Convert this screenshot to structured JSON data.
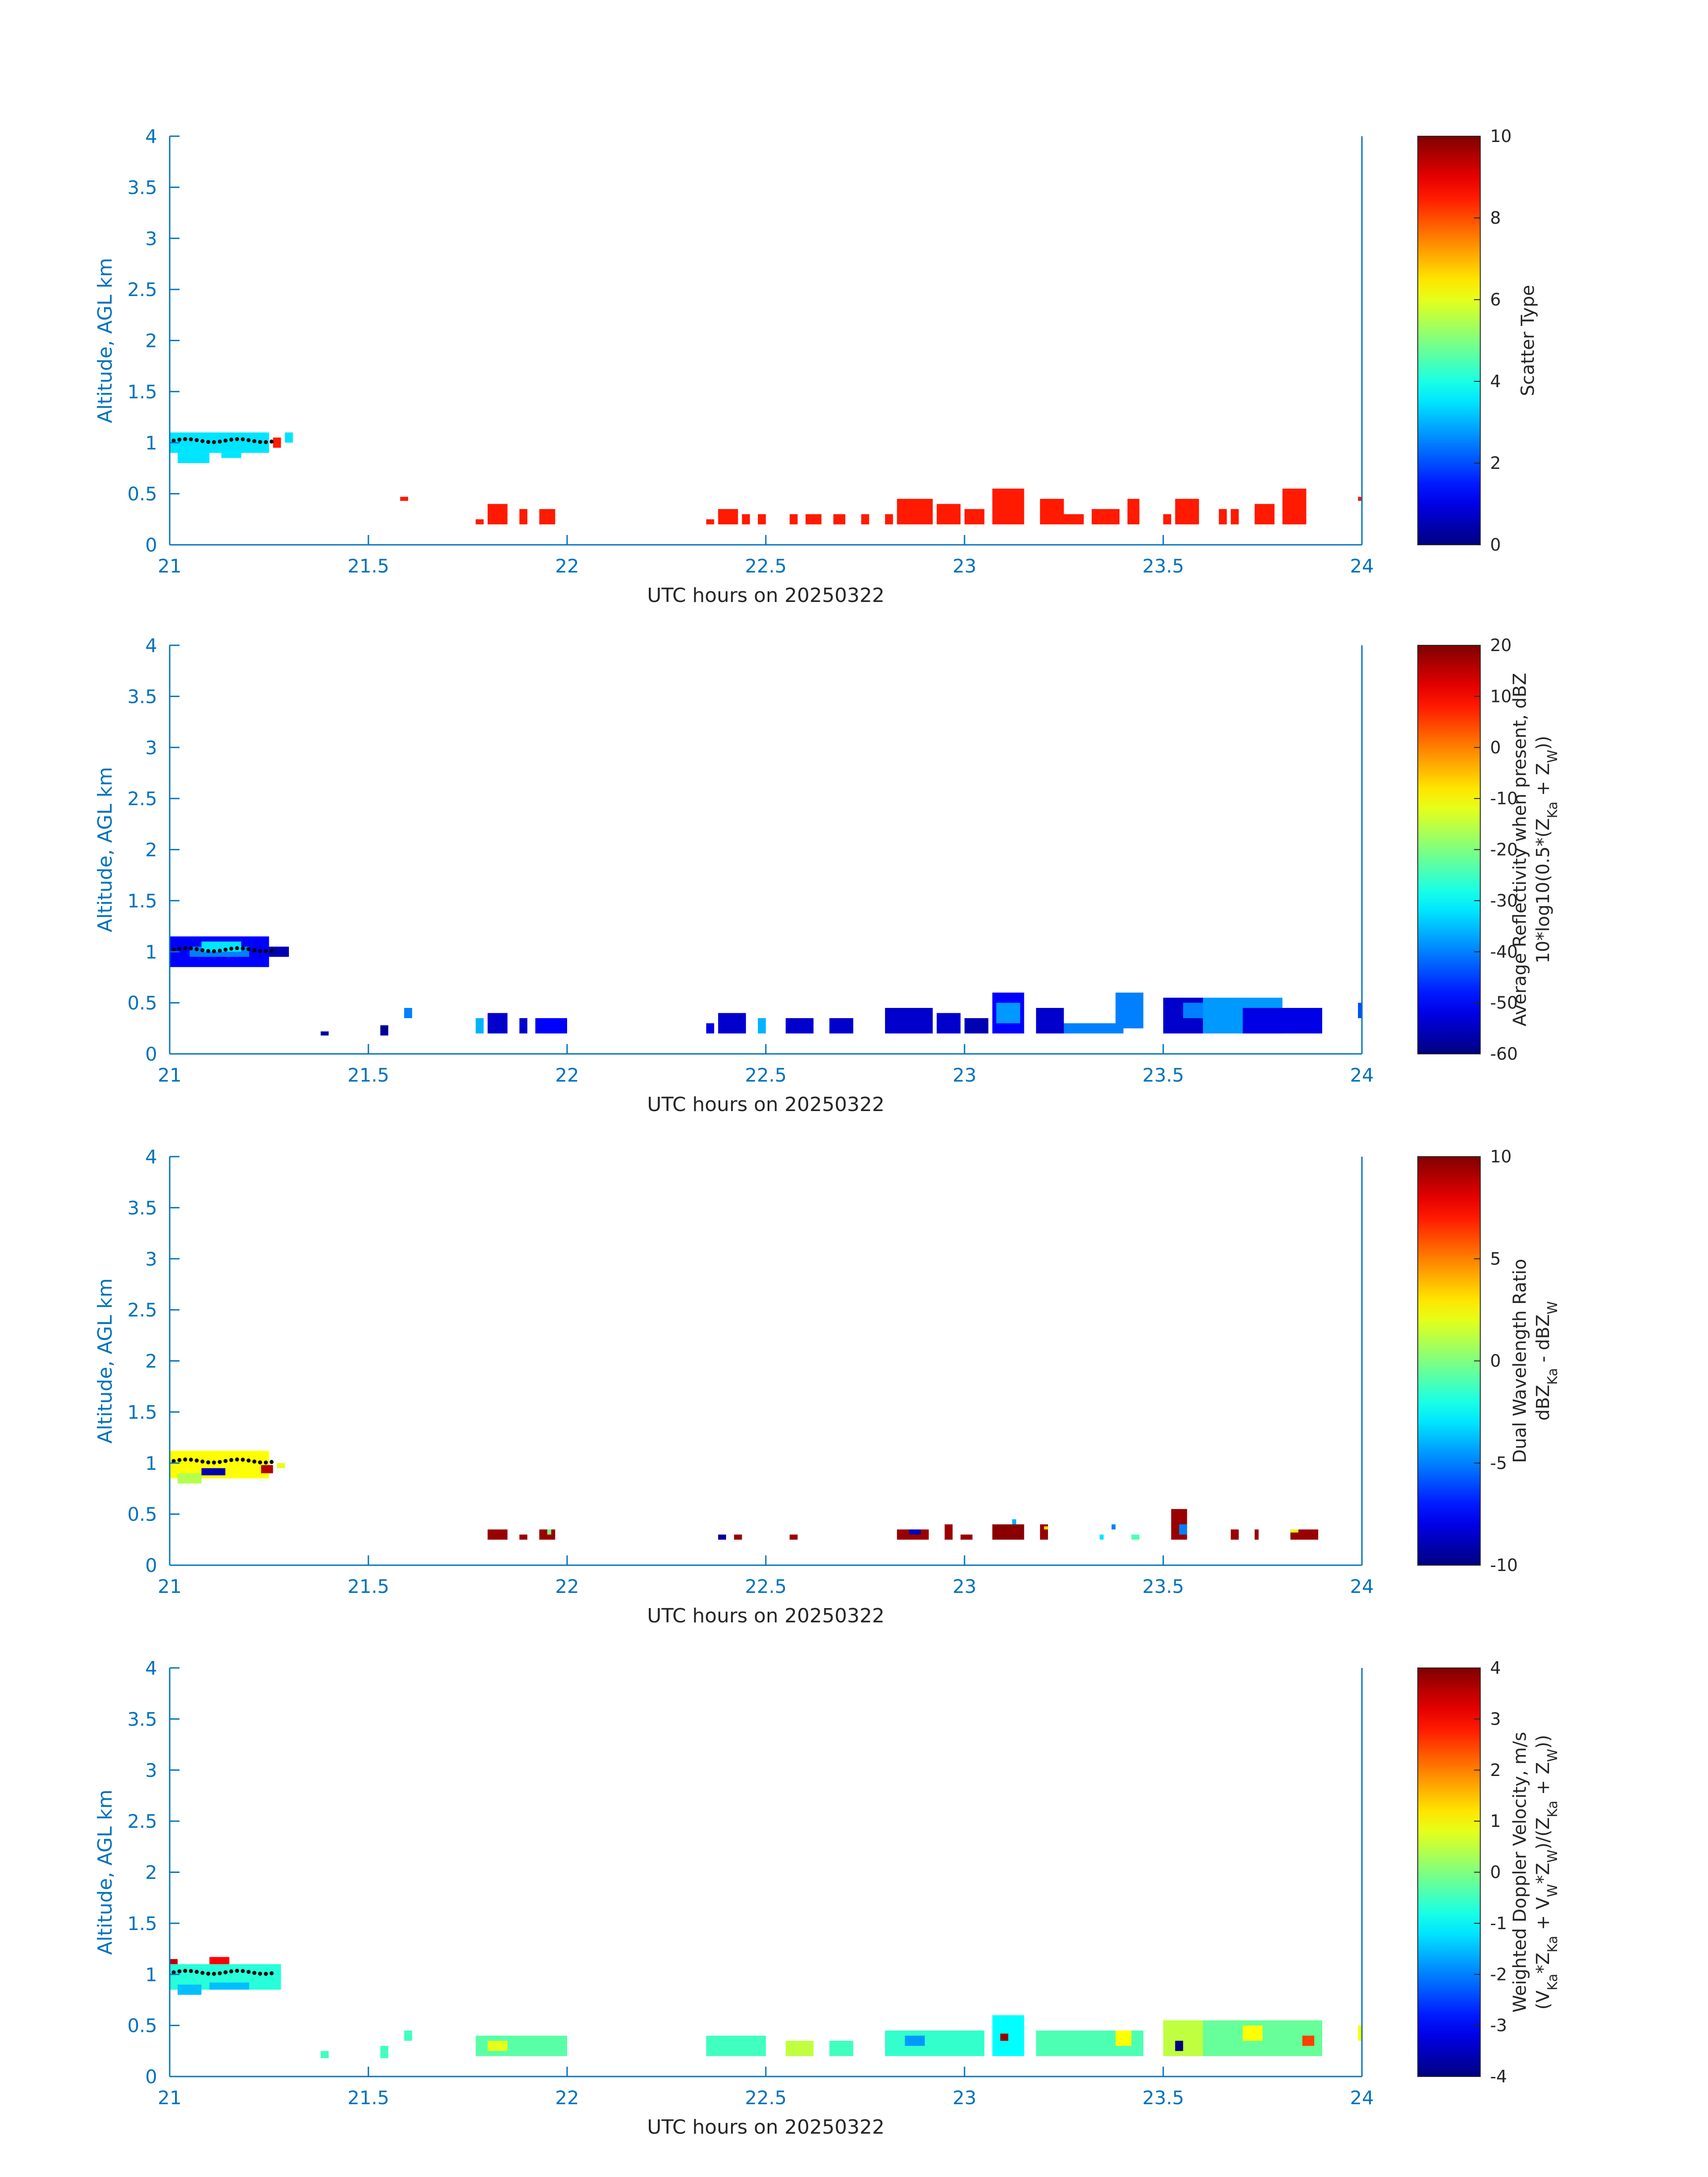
{
  "figure": {
    "xlabel": "UTC hours on 20250322",
    "ylabel": "Altitude, AGL km",
    "xlim": [
      21,
      24
    ],
    "ylim": [
      0,
      4
    ]
  },
  "chart_data": [
    {
      "type": "heatmap",
      "title": "Scatter Type",
      "xlabel": "UTC hours on 20250322",
      "ylabel": "Altitude, AGL km",
      "xlim": [
        21,
        24
      ],
      "ylim": [
        0,
        4
      ],
      "xticks": [
        "21",
        "21.5",
        "22",
        "22.5",
        "23",
        "23.5",
        "24"
      ],
      "yticks": [
        "0",
        "0.5",
        "1",
        "1.5",
        "2",
        "2.5",
        "3",
        "3.5",
        "4"
      ],
      "colorbar": {
        "label_lines": [
          "Scatter Type"
        ],
        "range": [
          0,
          10
        ],
        "ticks": [
          "0",
          "2",
          "4",
          "6",
          "8",
          "10"
        ]
      },
      "cells": [
        [
          21.0,
          21.25,
          0.9,
          1.1,
          3.5
        ],
        [
          21.02,
          21.1,
          0.8,
          0.9,
          3.5
        ],
        [
          21.13,
          21.18,
          0.85,
          0.9,
          3.5
        ],
        [
          21.26,
          21.28,
          0.95,
          1.05,
          8.5
        ],
        [
          21.29,
          21.31,
          1.0,
          1.1,
          3.5
        ],
        [
          21.58,
          21.6,
          0.43,
          0.47,
          8.5
        ],
        [
          21.77,
          21.79,
          0.2,
          0.25,
          8.5
        ],
        [
          21.8,
          21.85,
          0.2,
          0.4,
          8.5
        ],
        [
          21.88,
          21.9,
          0.2,
          0.35,
          8.5
        ],
        [
          21.93,
          21.97,
          0.2,
          0.35,
          8.5
        ],
        [
          22.35,
          22.37,
          0.2,
          0.25,
          8.5
        ],
        [
          22.38,
          22.43,
          0.2,
          0.35,
          8.5
        ],
        [
          22.44,
          22.46,
          0.2,
          0.3,
          8.5
        ],
        [
          22.48,
          22.5,
          0.2,
          0.3,
          8.5
        ],
        [
          22.56,
          22.58,
          0.2,
          0.3,
          8.5
        ],
        [
          22.6,
          22.64,
          0.2,
          0.3,
          8.5
        ],
        [
          22.67,
          22.7,
          0.2,
          0.3,
          8.5
        ],
        [
          22.74,
          22.76,
          0.2,
          0.3,
          8.5
        ],
        [
          22.8,
          22.82,
          0.2,
          0.3,
          8.5
        ],
        [
          22.83,
          22.92,
          0.2,
          0.45,
          8.5
        ],
        [
          22.93,
          22.99,
          0.2,
          0.4,
          8.5
        ],
        [
          23.0,
          23.05,
          0.2,
          0.35,
          8.5
        ],
        [
          23.07,
          23.15,
          0.2,
          0.55,
          8.5
        ],
        [
          23.19,
          23.25,
          0.2,
          0.45,
          8.5
        ],
        [
          23.25,
          23.3,
          0.2,
          0.3,
          8.5
        ],
        [
          23.32,
          23.39,
          0.2,
          0.35,
          8.5
        ],
        [
          23.41,
          23.44,
          0.2,
          0.45,
          8.5
        ],
        [
          23.5,
          23.52,
          0.2,
          0.3,
          8.5
        ],
        [
          23.53,
          23.59,
          0.2,
          0.45,
          8.5
        ],
        [
          23.64,
          23.66,
          0.2,
          0.35,
          8.5
        ],
        [
          23.67,
          23.69,
          0.2,
          0.35,
          8.5
        ],
        [
          23.73,
          23.78,
          0.2,
          0.4,
          8.5
        ],
        [
          23.8,
          23.86,
          0.2,
          0.55,
          8.5
        ],
        [
          23.99,
          24.0,
          0.43,
          0.47,
          8.5
        ]
      ]
    },
    {
      "type": "heatmap",
      "title": "Average Reflectivity when present, dBZ",
      "xlabel": "UTC hours on 20250322",
      "ylabel": "Altitude, AGL km",
      "xlim": [
        21,
        24
      ],
      "ylim": [
        0,
        4
      ],
      "xticks": [
        "21",
        "21.5",
        "22",
        "22.5",
        "23",
        "23.5",
        "24"
      ],
      "yticks": [
        "0",
        "0.5",
        "1",
        "1.5",
        "2",
        "2.5",
        "3",
        "3.5",
        "4"
      ],
      "colorbar": {
        "label_lines": [
          "Average Reflectivity when present, dBZ",
          "10*log10(0.5*(Z",
          "Ka",
          " + Z",
          "W",
          "))"
        ],
        "range": [
          -60,
          20
        ],
        "ticks": [
          "-60",
          "-50",
          "-40",
          "-30",
          "-20",
          "-10",
          "0",
          "10",
          "20"
        ]
      },
      "cells": [
        [
          21.0,
          21.25,
          0.85,
          1.15,
          -50
        ],
        [
          21.05,
          21.2,
          0.95,
          1.05,
          -40
        ],
        [
          21.08,
          21.18,
          1.0,
          1.1,
          -32
        ],
        [
          21.25,
          21.3,
          0.95,
          1.05,
          -56
        ],
        [
          21.38,
          21.4,
          0.18,
          0.22,
          -58
        ],
        [
          21.53,
          21.55,
          0.18,
          0.28,
          -58
        ],
        [
          21.59,
          21.61,
          0.35,
          0.45,
          -40
        ],
        [
          21.77,
          21.79,
          0.2,
          0.35,
          -36
        ],
        [
          21.8,
          21.85,
          0.2,
          0.4,
          -54
        ],
        [
          21.88,
          21.9,
          0.2,
          0.35,
          -54
        ],
        [
          21.92,
          22.0,
          0.2,
          0.35,
          -50
        ],
        [
          22.35,
          22.37,
          0.2,
          0.3,
          -52
        ],
        [
          22.38,
          22.45,
          0.2,
          0.4,
          -54
        ],
        [
          22.48,
          22.5,
          0.2,
          0.35,
          -36
        ],
        [
          22.55,
          22.62,
          0.2,
          0.35,
          -54
        ],
        [
          22.66,
          22.72,
          0.2,
          0.35,
          -54
        ],
        [
          22.8,
          22.92,
          0.2,
          0.45,
          -54
        ],
        [
          22.93,
          22.99,
          0.2,
          0.4,
          -54
        ],
        [
          23.0,
          23.06,
          0.2,
          0.35,
          -56
        ],
        [
          23.07,
          23.15,
          0.2,
          0.6,
          -50
        ],
        [
          23.08,
          23.14,
          0.3,
          0.5,
          -38
        ],
        [
          23.18,
          23.25,
          0.2,
          0.45,
          -54
        ],
        [
          23.25,
          23.4,
          0.2,
          0.3,
          -40
        ],
        [
          23.38,
          23.45,
          0.25,
          0.6,
          -40
        ],
        [
          23.5,
          23.6,
          0.2,
          0.55,
          -54
        ],
        [
          23.55,
          23.62,
          0.35,
          0.5,
          -40
        ],
        [
          23.6,
          23.8,
          0.2,
          0.55,
          -38
        ],
        [
          23.7,
          23.9,
          0.2,
          0.45,
          -52
        ],
        [
          23.99,
          24.0,
          0.35,
          0.5,
          -44
        ]
      ]
    },
    {
      "type": "heatmap",
      "title": "Dual Wavelength Ratio",
      "xlabel": "UTC hours on 20250322",
      "ylabel": "Altitude, AGL km",
      "xlim": [
        21,
        24
      ],
      "ylim": [
        0,
        4
      ],
      "xticks": [
        "21",
        "21.5",
        "22",
        "22.5",
        "23",
        "23.5",
        "24"
      ],
      "yticks": [
        "0",
        "0.5",
        "1",
        "1.5",
        "2",
        "2.5",
        "3",
        "3.5",
        "4"
      ],
      "colorbar": {
        "label_lines": [
          "Dual Wavelength Ratio",
          "dBZ",
          "Ka",
          " - dBZ",
          "W"
        ],
        "range": [
          -10,
          10
        ],
        "ticks": [
          "-10",
          "-5",
          "0",
          "5",
          "10"
        ]
      },
      "cells": [
        [
          21.0,
          21.25,
          0.85,
          1.12,
          2.5
        ],
        [
          21.02,
          21.08,
          0.8,
          0.9,
          1.0
        ],
        [
          21.08,
          21.14,
          0.88,
          0.95,
          -9
        ],
        [
          21.23,
          21.26,
          0.9,
          0.98,
          9
        ],
        [
          21.27,
          21.29,
          0.95,
          1.0,
          2
        ],
        [
          21.8,
          21.85,
          0.25,
          0.35,
          9.5
        ],
        [
          21.88,
          21.9,
          0.25,
          0.3,
          9.5
        ],
        [
          21.93,
          21.97,
          0.25,
          0.35,
          9.5
        ],
        [
          21.95,
          21.96,
          0.3,
          0.35,
          0
        ],
        [
          22.38,
          22.4,
          0.25,
          0.3,
          -9.5
        ],
        [
          22.42,
          22.44,
          0.25,
          0.3,
          9.5
        ],
        [
          22.56,
          22.58,
          0.25,
          0.3,
          9.5
        ],
        [
          22.83,
          22.91,
          0.25,
          0.35,
          9.5
        ],
        [
          22.86,
          22.89,
          0.3,
          0.35,
          -9
        ],
        [
          22.95,
          22.97,
          0.25,
          0.4,
          9.5
        ],
        [
          22.99,
          23.02,
          0.25,
          0.3,
          9.5
        ],
        [
          23.07,
          23.15,
          0.25,
          0.4,
          9.8
        ],
        [
          23.12,
          23.13,
          0.4,
          0.45,
          -4
        ],
        [
          23.19,
          23.21,
          0.25,
          0.4,
          9.5
        ],
        [
          23.2,
          23.21,
          0.35,
          0.38,
          3
        ],
        [
          23.34,
          23.35,
          0.25,
          0.3,
          -3
        ],
        [
          23.37,
          23.38,
          0.35,
          0.4,
          -5
        ],
        [
          23.42,
          23.44,
          0.25,
          0.3,
          -1
        ],
        [
          23.52,
          23.56,
          0.25,
          0.55,
          9.5
        ],
        [
          23.54,
          23.56,
          0.3,
          0.4,
          -5
        ],
        [
          23.67,
          23.69,
          0.25,
          0.35,
          9.5
        ],
        [
          23.73,
          23.74,
          0.25,
          0.35,
          9.5
        ],
        [
          23.82,
          23.89,
          0.25,
          0.35,
          9.5
        ],
        [
          23.82,
          23.84,
          0.32,
          0.35,
          2
        ]
      ]
    },
    {
      "type": "heatmap",
      "title": "Weighted Doppler Velocity, m/s",
      "xlabel": "UTC hours on 20250322",
      "ylabel": "Altitude, AGL km",
      "xlim": [
        21,
        24
      ],
      "ylim": [
        0,
        4
      ],
      "xticks": [
        "21",
        "21.5",
        "22",
        "22.5",
        "23",
        "23.5",
        "24"
      ],
      "yticks": [
        "0",
        "0.5",
        "1",
        "1.5",
        "2",
        "2.5",
        "3",
        "3.5",
        "4"
      ],
      "colorbar": {
        "label_lines": [
          "Weighted Doppler Velocity, m/s",
          "(V",
          "Ka",
          "*Z",
          "Ka",
          " + V",
          "W",
          "*Z",
          "W",
          ")/(Z",
          "Ka",
          " + Z",
          "W",
          "))"
        ],
        "range": [
          -4,
          4
        ],
        "ticks": [
          "-4",
          "-3",
          "-2",
          "-1",
          "0",
          "1",
          "2",
          "3",
          "4"
        ]
      },
      "cells": [
        [
          21.0,
          21.28,
          0.85,
          1.1,
          -0.7
        ],
        [
          21.02,
          21.08,
          0.8,
          0.9,
          -1.5
        ],
        [
          21.1,
          21.2,
          0.85,
          0.92,
          -1.5
        ],
        [
          21.0,
          21.02,
          1.1,
          1.15,
          3.5
        ],
        [
          21.1,
          21.15,
          1.1,
          1.17,
          3
        ],
        [
          21.38,
          21.4,
          0.18,
          0.25,
          -0.5
        ],
        [
          21.53,
          21.55,
          0.18,
          0.3,
          -0.5
        ],
        [
          21.59,
          21.61,
          0.35,
          0.45,
          -0.5
        ],
        [
          21.77,
          22.0,
          0.2,
          0.4,
          -0.3
        ],
        [
          21.8,
          21.85,
          0.25,
          0.35,
          0.8
        ],
        [
          22.35,
          22.5,
          0.2,
          0.4,
          -0.5
        ],
        [
          22.55,
          22.62,
          0.2,
          0.35,
          0.5
        ],
        [
          22.66,
          22.72,
          0.2,
          0.35,
          -0.5
        ],
        [
          22.8,
          23.05,
          0.2,
          0.45,
          -0.6
        ],
        [
          22.85,
          22.9,
          0.3,
          0.4,
          -1.8
        ],
        [
          23.07,
          23.15,
          0.2,
          0.6,
          -1.0
        ],
        [
          23.09,
          23.11,
          0.35,
          0.42,
          3.8
        ],
        [
          23.18,
          23.45,
          0.2,
          0.45,
          -0.4
        ],
        [
          23.38,
          23.42,
          0.3,
          0.45,
          1
        ],
        [
          23.5,
          23.6,
          0.2,
          0.55,
          0.5
        ],
        [
          23.53,
          23.55,
          0.25,
          0.35,
          -4
        ],
        [
          23.6,
          23.9,
          0.2,
          0.55,
          -0.2
        ],
        [
          23.7,
          23.75,
          0.35,
          0.5,
          1
        ],
        [
          23.85,
          23.88,
          0.3,
          0.4,
          2.5
        ],
        [
          23.99,
          24.0,
          0.35,
          0.5,
          1
        ]
      ]
    }
  ]
}
